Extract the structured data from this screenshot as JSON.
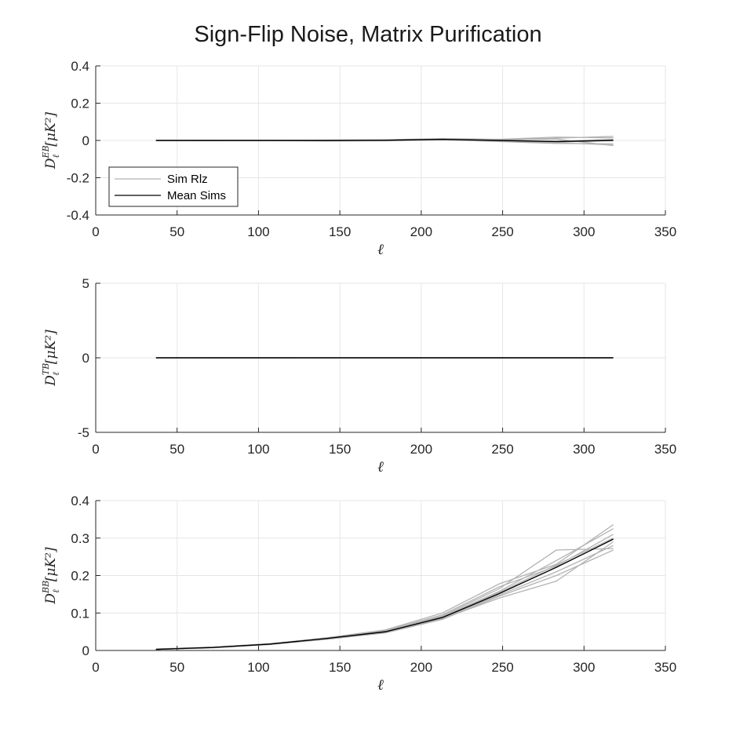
{
  "title": "Sign-Flip Noise, Matrix Purification",
  "colors": {
    "sim": "#b3b3b3",
    "mean": "#000000",
    "grid": "#e6e6e6",
    "axis": "#262626"
  },
  "legend": {
    "position": "bottom-left of first panel",
    "entries": [
      "Sim Rlz",
      "Mean Sims"
    ]
  },
  "chart_data": [
    {
      "type": "line",
      "xlabel": "ℓ",
      "ylabel": {
        "base": "D",
        "sup": "EB",
        "sub": "ℓ",
        "unit": "[μK²]"
      },
      "xlim": [
        0,
        350
      ],
      "ylim": [
        -0.4,
        0.4
      ],
      "xticks": [
        "0",
        "50",
        "100",
        "150",
        "200",
        "250",
        "300",
        "350"
      ],
      "yticks": [
        "-0.4",
        "-0.2",
        "0",
        "0.2",
        "0.4"
      ],
      "x": [
        37,
        72,
        107,
        142,
        178,
        213,
        248,
        283,
        318
      ],
      "mean": [
        0.0,
        0.0,
        0.0,
        0.0,
        0.001,
        0.006,
        0.0,
        -0.006,
        0.0
      ],
      "sims": [
        [
          0.0,
          0.001,
          0.0,
          0.002,
          0.003,
          0.008,
          0.004,
          0.012,
          0.022
        ],
        [
          0.0,
          -0.001,
          0.0,
          -0.002,
          -0.002,
          0.002,
          -0.004,
          -0.012,
          -0.024
        ],
        [
          0.0,
          0.0,
          0.001,
          0.001,
          0.004,
          0.01,
          0.006,
          0.018,
          0.014
        ],
        [
          0.0,
          0.0,
          -0.001,
          -0.003,
          -0.001,
          0.004,
          -0.006,
          -0.016,
          -0.018
        ],
        [
          0.0,
          0.001,
          0.0,
          0.0,
          0.002,
          0.006,
          0.002,
          0.008,
          -0.028
        ],
        [
          0.0,
          0.0,
          0.0,
          0.001,
          0.0,
          0.005,
          -0.002,
          -0.004,
          0.006
        ],
        [
          0.0,
          -0.001,
          0.0,
          -0.001,
          0.001,
          0.007,
          0.003,
          -0.01,
          0.002
        ]
      ],
      "show_legend": true
    },
    {
      "type": "line",
      "xlabel": "ℓ",
      "ylabel": {
        "base": "D",
        "sup": "TB",
        "sub": "ℓ",
        "unit": "[μK²]"
      },
      "xlim": [
        0,
        350
      ],
      "ylim": [
        -5,
        5
      ],
      "xticks": [
        "0",
        "50",
        "100",
        "150",
        "200",
        "250",
        "300",
        "350"
      ],
      "yticks": [
        "-5",
        "0",
        "5"
      ],
      "x": [
        37,
        72,
        107,
        142,
        178,
        213,
        248,
        283,
        318
      ],
      "mean": [
        0.0,
        0.0,
        0.0,
        0.0,
        0.0,
        0.0,
        0.0,
        0.0,
        0.0
      ],
      "sims": [
        [
          0.0,
          0.01,
          0.0,
          0.01,
          0.0,
          0.01,
          0.02,
          0.0,
          0.01
        ],
        [
          0.0,
          -0.01,
          0.0,
          0.0,
          -0.01,
          0.0,
          0.01,
          -0.01,
          0.0
        ],
        [
          0.0,
          0.0,
          0.01,
          0.0,
          0.0,
          -0.01,
          0.0,
          0.01,
          -0.01
        ],
        [
          0.0,
          0.01,
          -0.01,
          0.0,
          0.01,
          0.0,
          -0.01,
          0.0,
          0.0
        ]
      ],
      "show_legend": false
    },
    {
      "type": "line",
      "xlabel": "ℓ",
      "ylabel": {
        "base": "D",
        "sup": "BB",
        "sub": "ℓ",
        "unit": "[μK²]"
      },
      "xlim": [
        0,
        350
      ],
      "ylim": [
        0,
        0.4
      ],
      "xticks": [
        "0",
        "50",
        "100",
        "150",
        "200",
        "250",
        "300",
        "350"
      ],
      "yticks": [
        "0",
        "0.1",
        "0.2",
        "0.3",
        "0.4"
      ],
      "x": [
        37,
        72,
        107,
        142,
        178,
        213,
        248,
        283,
        318
      ],
      "mean": [
        0.003,
        0.008,
        0.017,
        0.032,
        0.05,
        0.088,
        0.152,
        0.222,
        0.297
      ],
      "sims": [
        [
          0.003,
          0.008,
          0.017,
          0.033,
          0.052,
          0.092,
          0.165,
          0.268,
          0.272
        ],
        [
          0.003,
          0.007,
          0.016,
          0.03,
          0.048,
          0.085,
          0.14,
          0.185,
          0.29
        ],
        [
          0.004,
          0.009,
          0.018,
          0.034,
          0.055,
          0.1,
          0.178,
          0.23,
          0.336
        ],
        [
          0.003,
          0.008,
          0.017,
          0.031,
          0.049,
          0.086,
          0.148,
          0.21,
          0.28
        ],
        [
          0.003,
          0.008,
          0.016,
          0.032,
          0.05,
          0.09,
          0.158,
          0.24,
          0.325
        ],
        [
          0.003,
          0.008,
          0.017,
          0.03,
          0.047,
          0.083,
          0.145,
          0.2,
          0.268
        ],
        [
          0.004,
          0.009,
          0.018,
          0.033,
          0.053,
          0.095,
          0.17,
          0.225,
          0.31
        ],
        [
          0.003,
          0.008,
          0.017,
          0.032,
          0.051,
          0.087,
          0.155,
          0.228,
          0.3
        ]
      ],
      "show_legend": false
    }
  ]
}
